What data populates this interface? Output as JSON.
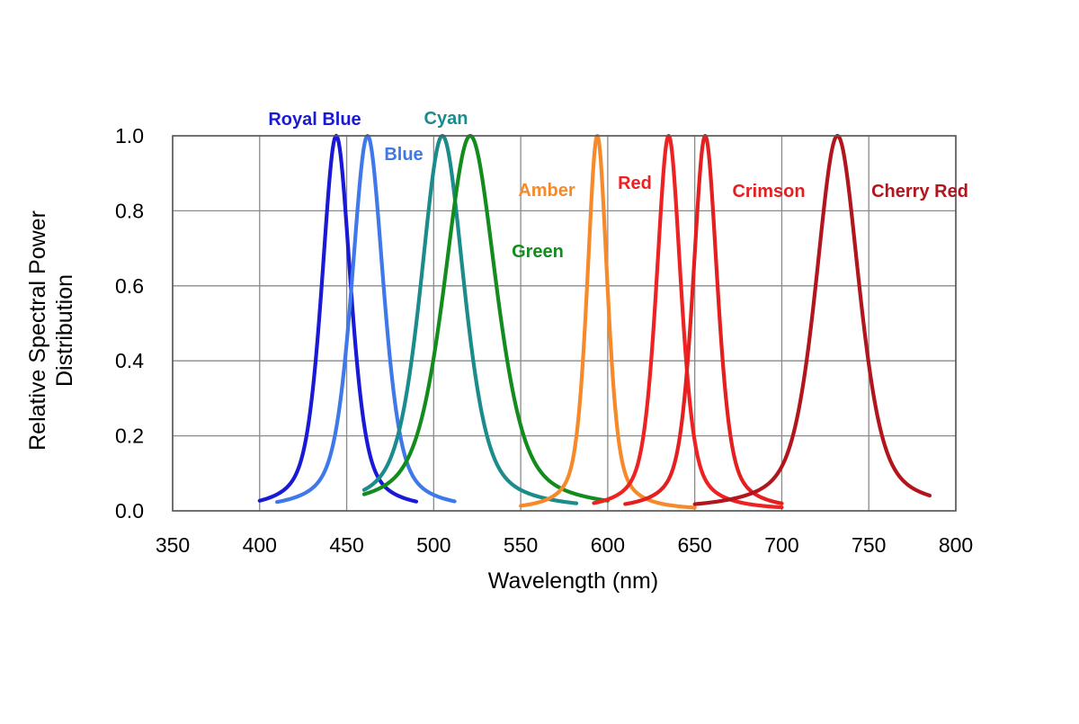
{
  "chart_data": {
    "type": "line",
    "title": "",
    "xlabel": "Wavelength (nm)",
    "ylabel": "Relative Spectral Power Distribution",
    "ylabel_lines": [
      "Relative Spectral Power",
      "Distribution"
    ],
    "xlim": [
      350,
      800
    ],
    "ylim": [
      0,
      1.0
    ],
    "xticks": [
      350,
      400,
      450,
      500,
      550,
      600,
      650,
      700,
      750,
      800
    ],
    "yticks": [
      0.0,
      0.2,
      0.4,
      0.6,
      0.8,
      1.0
    ],
    "xtick_labels": [
      "350",
      "400",
      "450",
      "500",
      "550",
      "600",
      "650",
      "700",
      "750",
      "800"
    ],
    "ytick_labels": [
      "0.0",
      "0.2",
      "0.4",
      "0.6",
      "0.8",
      "1.0"
    ],
    "grid": true,
    "legend": "direct labels next to each curve",
    "series": [
      {
        "name": "Royal Blue",
        "color": "#1a1ad6",
        "peak": 444,
        "fwhm": 20,
        "range": [
          400,
          490
        ],
        "x": [
          400,
          420,
          430,
          435,
          440,
          444,
          448,
          452,
          460,
          470,
          490
        ],
        "y": [
          0.01,
          0.12,
          0.38,
          0.62,
          0.9,
          1.0,
          0.88,
          0.64,
          0.26,
          0.09,
          0.01
        ]
      },
      {
        "name": "Blue",
        "color": "#3f78e8",
        "peak": 462,
        "fwhm": 22,
        "range": [
          410,
          512
        ],
        "x": [
          410,
          435,
          445,
          452,
          458,
          462,
          466,
          472,
          480,
          495,
          512
        ],
        "y": [
          0.01,
          0.08,
          0.3,
          0.62,
          0.9,
          1.0,
          0.9,
          0.55,
          0.28,
          0.07,
          0.02
        ]
      },
      {
        "name": "Cyan",
        "color": "#1b8b8b",
        "peak": 505,
        "fwhm": 30,
        "range": [
          460,
          582
        ],
        "x": [
          460,
          480,
          490,
          498,
          505,
          512,
          520,
          530,
          545,
          560,
          582
        ],
        "y": [
          0.02,
          0.22,
          0.55,
          0.88,
          1.0,
          0.85,
          0.48,
          0.24,
          0.1,
          0.04,
          0.01
        ]
      },
      {
        "name": "Green",
        "color": "#138c1e",
        "peak": 521,
        "fwhm": 36,
        "range": [
          460,
          600
        ],
        "x": [
          460,
          485,
          500,
          510,
          516,
          521,
          527,
          535,
          545,
          560,
          580,
          600
        ],
        "y": [
          0.01,
          0.13,
          0.38,
          0.72,
          0.92,
          1.0,
          0.92,
          0.7,
          0.47,
          0.22,
          0.07,
          0.01
        ]
      },
      {
        "name": "Amber",
        "color": "#f68a2a",
        "peak": 594,
        "fwhm": 14,
        "range": [
          550,
          650
        ],
        "x": [
          550,
          570,
          580,
          586,
          590,
          594,
          598,
          602,
          608,
          620,
          650
        ],
        "y": [
          0.01,
          0.06,
          0.18,
          0.42,
          0.76,
          1.0,
          0.76,
          0.42,
          0.16,
          0.04,
          0.0
        ]
      },
      {
        "name": "Red",
        "color": "#ee2222",
        "peak": 635,
        "fwhm": 17,
        "range": [
          592,
          700
        ],
        "x": [
          592,
          610,
          620,
          626,
          631,
          635,
          639,
          644,
          650,
          665,
          700
        ],
        "y": [
          0.0,
          0.08,
          0.24,
          0.5,
          0.84,
          1.0,
          0.84,
          0.5,
          0.22,
          0.05,
          0.0
        ]
      },
      {
        "name": "Crimson",
        "color": "#e41f1f",
        "peak": 656,
        "fwhm": 17,
        "range": [
          610,
          700
        ],
        "x": [
          610,
          630,
          640,
          646,
          652,
          656,
          660,
          665,
          672,
          685,
          700
        ],
        "y": [
          0.0,
          0.07,
          0.22,
          0.48,
          0.86,
          1.0,
          0.86,
          0.48,
          0.2,
          0.04,
          0.0
        ]
      },
      {
        "name": "Cherry Red",
        "color": "#b3151d",
        "peak": 732,
        "fwhm": 30,
        "range": [
          650,
          785
        ],
        "x": [
          650,
          690,
          705,
          715,
          722,
          732,
          742,
          750,
          760,
          770,
          785
        ],
        "y": [
          0.0,
          0.06,
          0.18,
          0.4,
          0.7,
          1.0,
          0.7,
          0.4,
          0.15,
          0.05,
          0.01
        ]
      }
    ]
  }
}
